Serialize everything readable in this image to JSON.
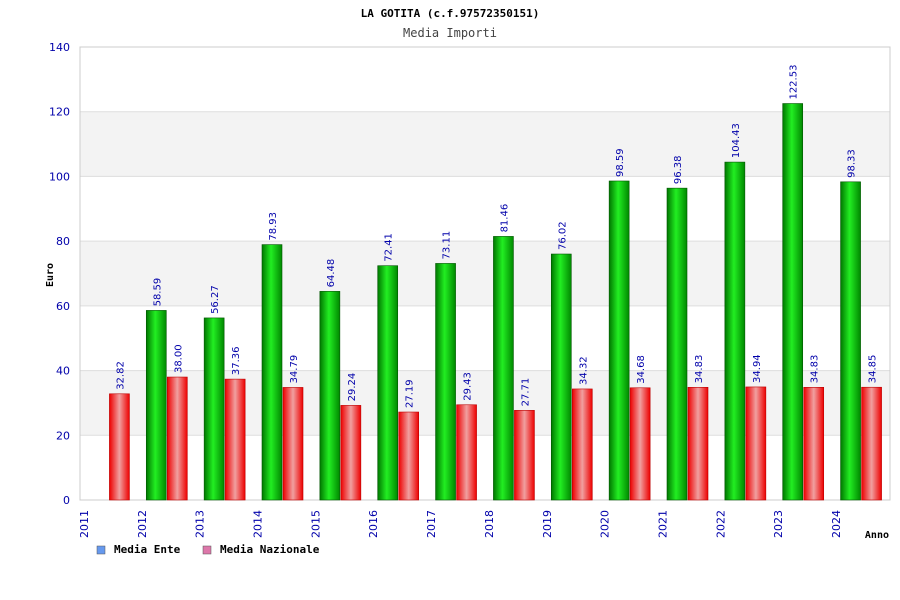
{
  "chart_data": {
    "type": "bar",
    "title": "LA GOTITA (c.f.97572350151)",
    "subtitle": "Media Importi",
    "xlabel": "Anno",
    "ylabel": "Euro",
    "ylim": [
      0,
      140
    ],
    "yticks": [
      0,
      20,
      40,
      60,
      80,
      100,
      120,
      140
    ],
    "grid": true,
    "legend_position": "bottom-left",
    "categories": [
      "2011",
      "2012",
      "2013",
      "2014",
      "2015",
      "2016",
      "2017",
      "2018",
      "2019",
      "2020",
      "2021",
      "2022",
      "2023",
      "2024"
    ],
    "series": [
      {
        "name": "Media Ente",
        "legend_color": "#6699ee",
        "bar_color": "#00bb00",
        "values": [
          null,
          58.59,
          56.27,
          78.93,
          64.48,
          72.41,
          73.11,
          81.46,
          76.02,
          98.59,
          96.38,
          104.43,
          122.53,
          98.33
        ],
        "labels": [
          "",
          "58.59",
          "56.27",
          "78.93",
          "64.48",
          "72.41",
          "73.11",
          "81.46",
          "76.02",
          "98.59",
          "96.38",
          "104.43",
          "122.53",
          "98.33"
        ]
      },
      {
        "name": "Media Nazionale",
        "legend_color": "#dd77aa",
        "bar_color": "#ee2222",
        "values": [
          32.82,
          38.0,
          37.36,
          34.79,
          29.24,
          27.19,
          29.43,
          27.71,
          34.32,
          34.68,
          34.83,
          34.94,
          34.83,
          34.85
        ],
        "labels": [
          "32.82",
          "38.00",
          "37.36",
          "34.79",
          "29.24",
          "27.19",
          "29.43",
          "27.71",
          "34.32",
          "34.68",
          "34.83",
          "34.94",
          "34.83",
          "34.85"
        ]
      }
    ]
  }
}
